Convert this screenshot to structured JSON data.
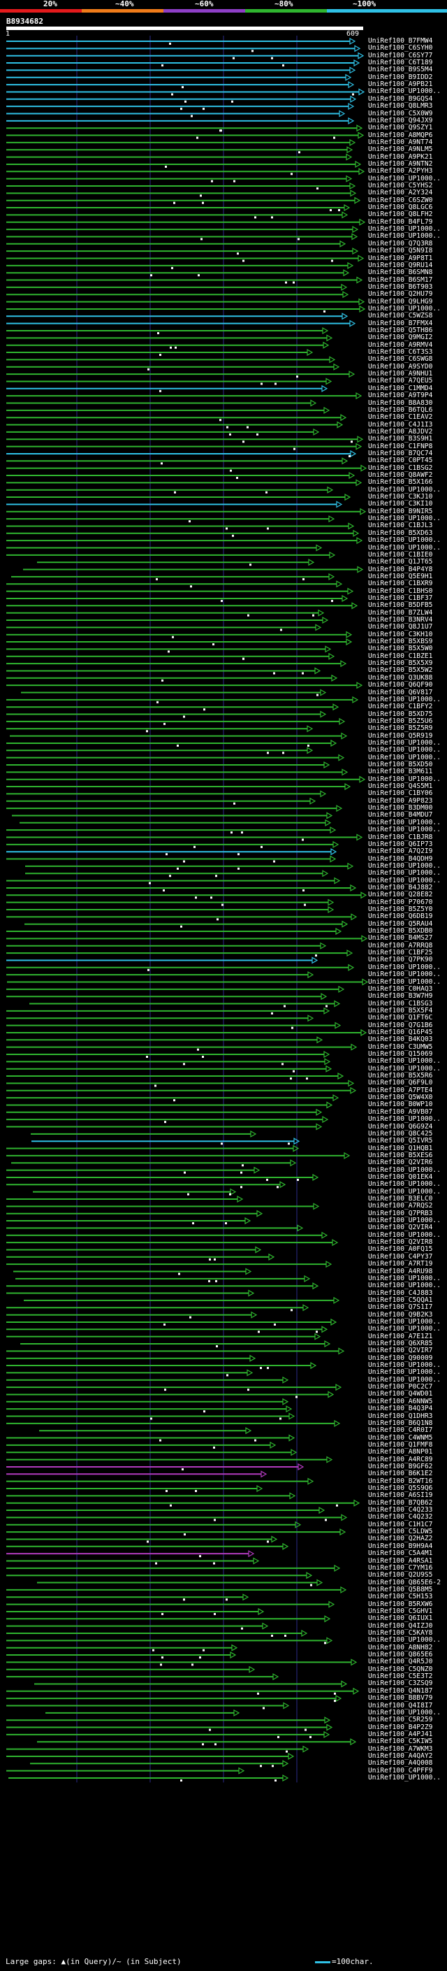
{
  "legend": {
    "percent_labels": [
      "20%",
      "~40%",
      "~60%",
      "~80%",
      "~100%"
    ],
    "colors": [
      "#e41a1c",
      "#f07c1a",
      "#8e3fc7",
      "#2fb52f",
      "#2fc1e6"
    ]
  },
  "query": {
    "id": "B8934682",
    "start": "1",
    "end": "609"
  },
  "hit_colors": {
    "cyan": "#2fc1e6",
    "green": "#2fb52f",
    "magenta": "#b13bbd",
    "white": "#ffffff",
    "grid": "#2c2c8a"
  },
  "hits": [
    "UniRef100_B7FMW4",
    "UniRef100_C6SYH0",
    "UniRef100_C6SY77",
    "UniRef100_C6T189",
    "UniRef100_B9S5M4",
    "UniRef100_B9IDD2",
    "UniRef100_A9PB21",
    "UniRef100_UP1000..",
    "UniRef100_B9GQS4",
    "UniRef100_Q8LMR3",
    "UniRef100_C5X0W9",
    "UniRef100_Q94JX9",
    "UniRef100_Q9SZY1",
    "UniRef100_A8MQP6",
    "UniRef100_A9NT74",
    "UniRef100_A9NLM5",
    "UniRef100_A9PK21",
    "UniRef100_A9NTN2",
    "UniRef100_A2PYH3",
    "UniRef100_UP1000..",
    "UniRef100_C5YHS2",
    "UniRef100_A2Y324",
    "UniRef100_C6SZW0",
    "UniRef100_Q8LGC6",
    "UniRef100_Q8LFH2",
    "UniRef100_B4FL79",
    "UniRef100_UP1000..",
    "UniRef100_UP1000..",
    "UniRef100_Q7Q3R8",
    "UniRef100_Q5N9I8",
    "UniRef100_A9P8T1",
    "UniRef100_Q9RU14",
    "UniRef100_B6SMN8",
    "UniRef100_B6SM17",
    "UniRef100_B6T903",
    "UniRef100_Q2HU79",
    "UniRef100_Q9LHG9",
    "UniRef100_UP1000..",
    "UniRef100_C5WZS8",
    "UniRef100_B7FMX4",
    "UniRef100_Q5TH86",
    "UniRef100_Q9MGI2",
    "UniRef100_A9RMV4",
    "UniRef100_C6T3S3",
    "UniRef100_C6SWG8",
    "UniRef100_A9SYD0",
    "UniRef100_A9NHU1",
    "UniRef100_A7QEU5",
    "UniRef100_C1MMD4",
    "UniRef100_A9T9P4",
    "UniRef100_B8A830",
    "UniRef100_B6TQL6",
    "UniRef100_C1EAV2",
    "UniRef100_C4J1I3",
    "UniRef100_A8JDV2",
    "UniRef100_B3S9H1",
    "UniRef100_C1FNP8",
    "UniRef100_B7QC74",
    "UniRef100_C0PT45",
    "UniRef100_C1BSG2",
    "UniRef100_Q8AWF2",
    "UniRef100_B5X166",
    "UniRef100_UP1000..",
    "UniRef100_C3KJ10",
    "UniRef100_C3KI10",
    "UniRef100_B9NIR5",
    "UniRef100_UP1000..",
    "UniRef100_C1BJL3",
    "UniRef100_B5XD63",
    "UniRef100_UP1000..",
    "UniRef100_UP1000..",
    "UniRef100_C1BIE0",
    "UniRef100_Q1JT65",
    "UniRef100_B4P4Y8",
    "UniRef100_Q5E9H1",
    "UniRef100_C1BXR9",
    "UniRef100_C1BHS0",
    "UniRef100_C1BF37",
    "UniRef100_B5DFB5",
    "UniRef100_B7ZLW4",
    "UniRef100_B3NRV4",
    "UniRef100_Q8J1U7",
    "UniRef100_C3KH10",
    "UniRef100_B5XBS9",
    "UniRef100_B5X5W0",
    "UniRef100_C1BZE1",
    "UniRef100_B5X5X9",
    "UniRef100_B5X5W2",
    "UniRef100_Q3UK88",
    "UniRef100_Q6QF90",
    "UniRef100_Q6V817",
    "UniRef100_UP1000..",
    "UniRef100_C1BFY2",
    "UniRef100_B5XD75",
    "UniRef100_B5Z5U6",
    "UniRef100_B5Z5R9",
    "UniRef100_Q5R919",
    "UniRef100_UP1000..",
    "UniRef100_UP1000..",
    "UniRef100_UP1000..",
    "UniRef100_B5XD50",
    "UniRef100_B3M611",
    "UniRef100_UP1000..",
    "UniRef100_Q4S5M1",
    "UniRef100_C1BY06",
    "UniRef100_A9P823",
    "UniRef100_B3DM00",
    "UniRef100_B4MDU7",
    "UniRef100_UP1000..",
    "UniRef100_UP1000..",
    "UniRef100_C1BJR8",
    "UniRef100_Q6IP73",
    "UniRef100_A7Q2I9",
    "UniRef100_B4QDH9",
    "UniRef100_UP1000..",
    "UniRef100_UP1000..",
    "UniRef100_UP1000..",
    "UniRef100_B4J882",
    "UniRef100_Q28E82",
    "UniRef100_P70670",
    "UniRef100_B5Z5Y0",
    "UniRef100_Q6DB19",
    "UniRef100_Q5RAU4",
    "UniRef100_B5XDB0",
    "UniRef100_B4MS27",
    "UniRef100_A7RRQ8",
    "UniRef100_C1BF25",
    "UniRef100_Q7PK90",
    "UniRef100_UP1000..",
    "UniRef100_UP1000..",
    "UniRef100_UP1000..",
    "UniRef100_C0HAQ3",
    "UniRef100_B3W7H9",
    "UniRef100_C1BSG3",
    "UniRef100_B5X5F4",
    "UniRef100_Q1FT6C",
    "UniRef100_Q7G1B6",
    "UniRef100_Q16P45",
    "UniRef100_B4KQ03",
    "UniRef100_C3UMW5",
    "UniRef100_Q15069",
    "UniRef100_UP1000..",
    "UniRef100_UP1000..",
    "UniRef100_B5X5R6",
    "UniRef100_Q6F9L0",
    "UniRef100_A7PTE4",
    "UniRef100_Q5W4X0",
    "UniRef100_B0WP10",
    "UniRef100_A9VB07",
    "UniRef100_UP1000..",
    "UniRef100_Q6G9Z4",
    "UniRef100_Q8C425",
    "UniRef100_Q5IVR5",
    "UniRef100_Q1HQB1",
    "UniRef100_B5XES6",
    "UniRef100_Q2VIR6",
    "UniRef100_UP1000..",
    "UniRef100_Q01EK4",
    "UniRef100_UP1000..",
    "UniRef100_UP1000..",
    "UniRef100_B3ELC0",
    "UniRef100_A7RQS2",
    "UniRef100_Q7PRB3",
    "UniRef100_UP1000..",
    "UniRef100_Q2VIR4",
    "UniRef100_UP1000..",
    "UniRef100_Q2VIR8",
    "UniRef100_A0FQ15",
    "UniRef100_C4PY37",
    "UniRef100_A7RT19",
    "UniRef100_A4RU98",
    "UniRef100_UP1000..",
    "UniRef100_UP1000..",
    "UniRef100_C4J883",
    "UniRef100_C5QQA1",
    "UniRef100_Q7S1I7",
    "UniRef100_Q9B2K3",
    "UniRef100_UP1000..",
    "UniRef100_UP1000..",
    "UniRef100_A7E1Z1",
    "UniRef100_Q6XR85",
    "UniRef100_Q2VIR7",
    "UniRef100_Q90009",
    "UniRef100_UP1000..",
    "UniRef100_UP1000..",
    "UniRef100_UP1000..",
    "UniRef100_P0C2C7",
    "UniRef100_Q4WD01",
    "UniRef100_A6NNW5",
    "UniRef100_B4Q3P4",
    "UniRef100_Q1DHR3",
    "UniRef100_B6Q1N8",
    "UniRef100_C4R0I7",
    "UniRef100_C4WNM5",
    "UniRef100_Q1FMF8",
    "UniRef100_A8NP01",
    "UniRef100_A4RC89",
    "UniRef100_B9GF62",
    "UniRef100_B6K1E2",
    "UniRef100_B2WT16",
    "UniRef100_Q5S9Q6",
    "UniRef100_A6SI19",
    "UniRef100_B7QB62",
    "UniRef100_C4Q233",
    "UniRef100_C4Q232",
    "UniRef100_C1H1C7",
    "UniRef100_C5LDW5",
    "UniRef100_Q2HAZ2",
    "UniRef100_B9H9A4",
    "UniRef100_C5A4M1",
    "UniRef100_A4RSA1",
    "UniRef100_C7YM16",
    "UniRef100_Q2U9S5",
    "UniRef100_Q865E6-2",
    "UniRef100_Q5B8M5",
    "UniRef100_C5H153",
    "UniRef100_B5RXW6",
    "UniRef100_C5GHV1",
    "UniRef100_Q6IUX1",
    "UniRef100_Q4IZJ0",
    "UniRef100_C5KAY8",
    "UniRef100_UP1000..",
    "UniRef100_A8NH82",
    "UniRef100_Q865E6",
    "UniRef100_Q4R5J0",
    "UniRef100_C5QNZ0",
    "UniRef100_C5E3T2",
    "UniRef100_C3ZSQ9",
    "UniRef100_Q4N187",
    "UniRef100_B8BV79",
    "UniRef100_Q4I8I7",
    "UniRef100_UP1000..",
    "UniRef100_C5R259",
    "UniRef100_B4P2Z9",
    "UniRef100_A4PJ41",
    "UniRef100_C5KIW5",
    "UniRef100_A7WKM3",
    "UniRef100_A4QAY2",
    "UniRef100_A4Q008",
    "UniRef100_C4PFF9",
    "UniRef100_UP1000.."
  ],
  "footer": {
    "gaps_text": "Large gaps: ▲(in Query)/~ (in Subject)",
    "scale_text": "=100char."
  }
}
